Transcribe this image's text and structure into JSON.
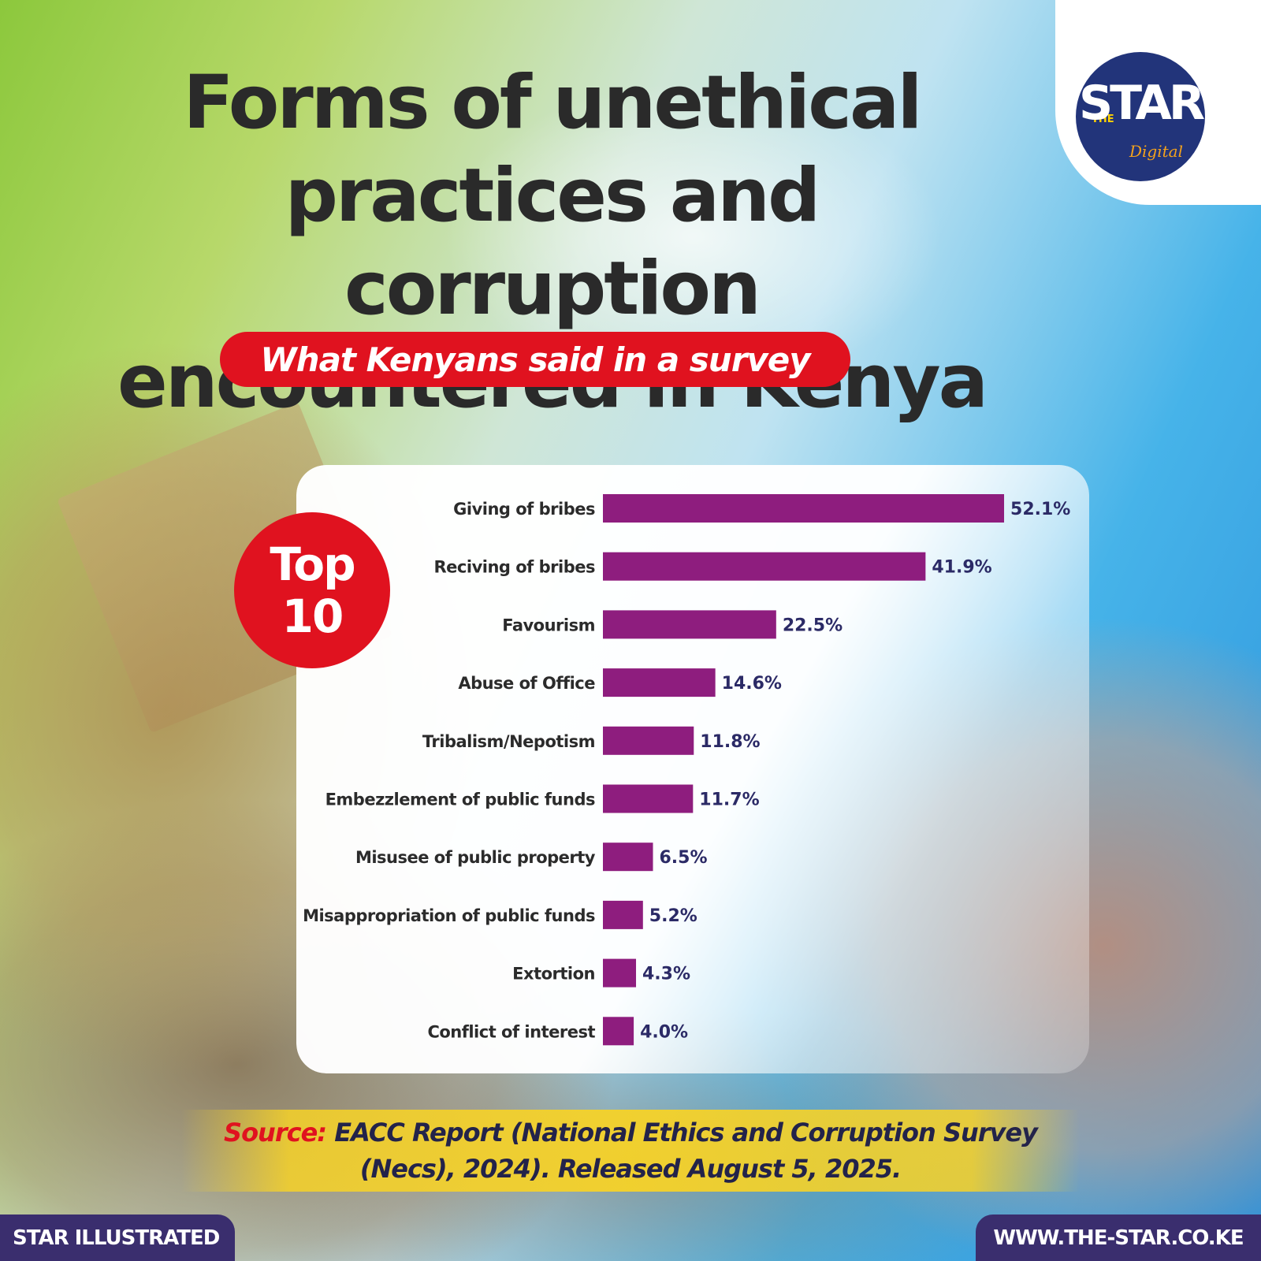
{
  "title": "Forms of unethical practices and corruption encountered in Kenya",
  "subtitle": "What Kenyans said in a survey",
  "logo": {
    "the": "THE",
    "star": "STAR",
    "digital": "Digital"
  },
  "badge": {
    "line1": "Top",
    "line2": "10"
  },
  "source": {
    "label": "Source:",
    "text": "EACC Report (National Ethics and Corruption Survey (Necs), 2024). Released August 5, 2025."
  },
  "footer": {
    "left": "STAR ILLUSTRATED",
    "right": "WWW.THE-STAR.CO.KE"
  },
  "colors": {
    "bar": "#8e1d7e",
    "accent_red": "#e0121f",
    "navy": "#3a2e6e",
    "value_text": "#2b2a66"
  },
  "chart_data": {
    "type": "bar",
    "orientation": "horizontal",
    "title": "Forms of unethical practices and corruption encountered in Kenya",
    "subtitle": "What Kenyans said in a survey",
    "categories": [
      "Giving of bribes",
      "Reciving of bribes",
      "Favourism",
      "Abuse of Office",
      "Tribalism/Nepotism",
      "Embezzlement of public funds",
      "Misusee of public property",
      "Misappropriation of public funds",
      "Extortion",
      "Conflict of interest"
    ],
    "values": [
      52.1,
      41.9,
      22.5,
      14.6,
      11.8,
      11.7,
      6.5,
      5.2,
      4.3,
      4.0
    ],
    "value_labels": [
      "52.1%",
      "41.9%",
      "22.5%",
      "14.6%",
      "11.8%",
      "11.7%",
      "6.5%",
      "5.2%",
      "4.3%",
      "4.0%"
    ],
    "unit": "%",
    "grid": false,
    "legend": "none"
  }
}
